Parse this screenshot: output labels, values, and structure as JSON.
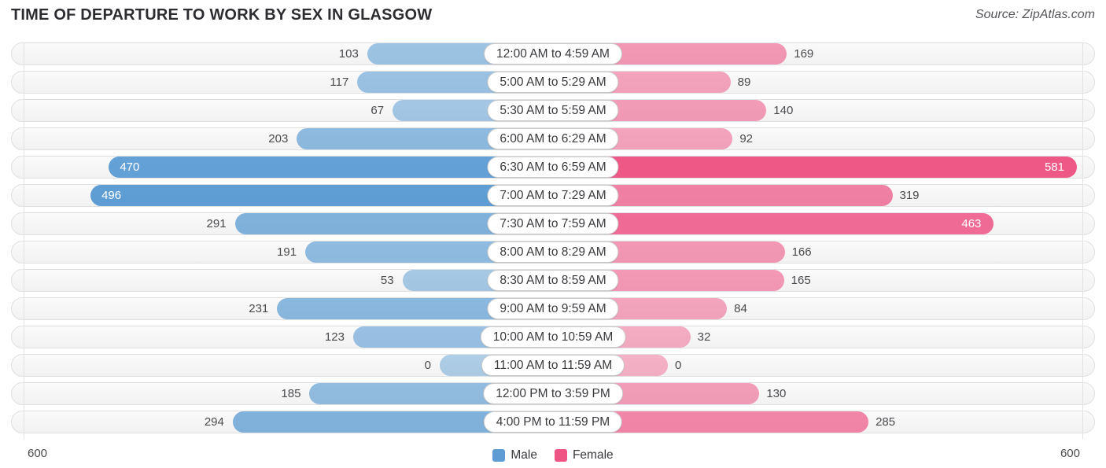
{
  "header": {
    "title": "TIME OF DEPARTURE TO WORK BY SEX IN GLASGOW",
    "source": "Source: ZipAtlas.com"
  },
  "axis": {
    "left_max_label": "600",
    "right_max_label": "600"
  },
  "legend": {
    "male_label": "Male",
    "female_label": "Female",
    "male_color": "#609cd4",
    "female_color": "#ee5585"
  },
  "style": {
    "male_base_color_rgb": [
      78,
      148,
      208
    ],
    "female_base_color_rgb": [
      238,
      85,
      133
    ],
    "alpha_min": 0.44,
    "alpha_span": 0.56,
    "label_inside_threshold": 400
  },
  "chart_data": {
    "type": "bar",
    "orientation": "bidirectional-horizontal",
    "title": "TIME OF DEPARTURE TO WORK BY SEX IN GLASGOW",
    "categories": [
      "12:00 AM to 4:59 AM",
      "5:00 AM to 5:29 AM",
      "5:30 AM to 5:59 AM",
      "6:00 AM to 6:29 AM",
      "6:30 AM to 6:59 AM",
      "7:00 AM to 7:29 AM",
      "7:30 AM to 7:59 AM",
      "8:00 AM to 8:29 AM",
      "8:30 AM to 8:59 AM",
      "9:00 AM to 9:59 AM",
      "10:00 AM to 10:59 AM",
      "11:00 AM to 11:59 AM",
      "12:00 PM to 3:59 PM",
      "4:00 PM to 11:59 PM"
    ],
    "series": [
      {
        "name": "Male",
        "values": [
          103,
          117,
          67,
          203,
          470,
          496,
          291,
          191,
          53,
          231,
          123,
          0,
          185,
          294
        ]
      },
      {
        "name": "Female",
        "values": [
          169,
          89,
          140,
          92,
          581,
          319,
          463,
          166,
          165,
          84,
          32,
          0,
          130,
          285
        ]
      }
    ],
    "xlim": [
      0,
      600
    ],
    "axis_tick_labels": [
      "600",
      "600"
    ],
    "legend_position": "bottom-center",
    "grid": "edge-gridlines-only"
  }
}
